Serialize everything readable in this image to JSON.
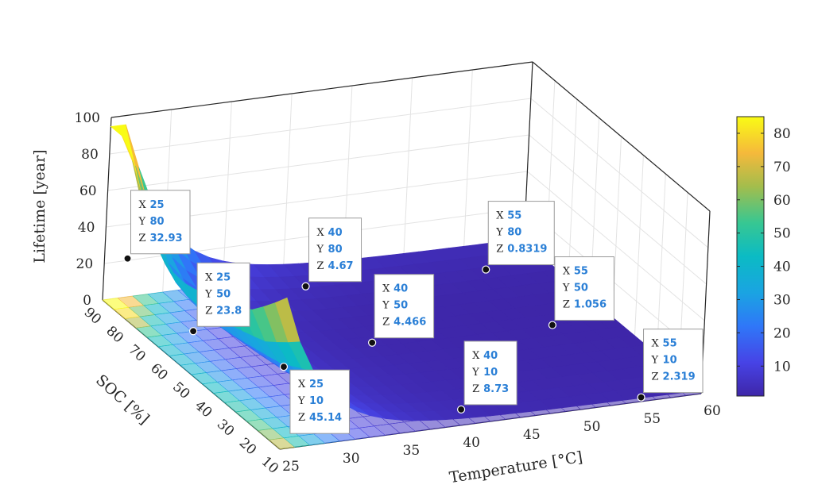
{
  "chart_data": {
    "type": "surface",
    "title": "",
    "xlabel": "Temperature [°C]",
    "ylabel": "SOC [%]",
    "zlabel": "Lifetime [year]",
    "xlim": [
      25,
      60
    ],
    "ylim": [
      10,
      90
    ],
    "zlim": [
      0,
      100
    ],
    "x_ticks": [
      "25",
      "30",
      "35",
      "40",
      "45",
      "50",
      "55",
      "60"
    ],
    "y_ticks": [
      "10",
      "20",
      "30",
      "40",
      "50",
      "60",
      "70",
      "80",
      "90"
    ],
    "z_ticks": [
      "0",
      "20",
      "40",
      "60",
      "80",
      "100"
    ],
    "colorbar": {
      "colormap": "parula",
      "range": [
        1,
        85
      ],
      "ticks": [
        "10",
        "20",
        "30",
        "40",
        "50",
        "60",
        "70",
        "80"
      ]
    },
    "datatips": [
      {
        "x": "25",
        "y": "80",
        "z": "32.93"
      },
      {
        "x": "25",
        "y": "50",
        "z": "23.8"
      },
      {
        "x": "25",
        "y": "10",
        "z": "45.14"
      },
      {
        "x": "40",
        "y": "80",
        "z": "4.67"
      },
      {
        "x": "40",
        "y": "50",
        "z": "4.466"
      },
      {
        "x": "40",
        "y": "10",
        "z": "8.73"
      },
      {
        "x": "55",
        "y": "80",
        "z": "0.8319"
      },
      {
        "x": "55",
        "y": "50",
        "z": "1.056"
      },
      {
        "x": "55",
        "y": "10",
        "z": "2.319"
      }
    ],
    "datatip_keys": {
      "x": "X",
      "y": "Y",
      "z": "Z"
    }
  }
}
